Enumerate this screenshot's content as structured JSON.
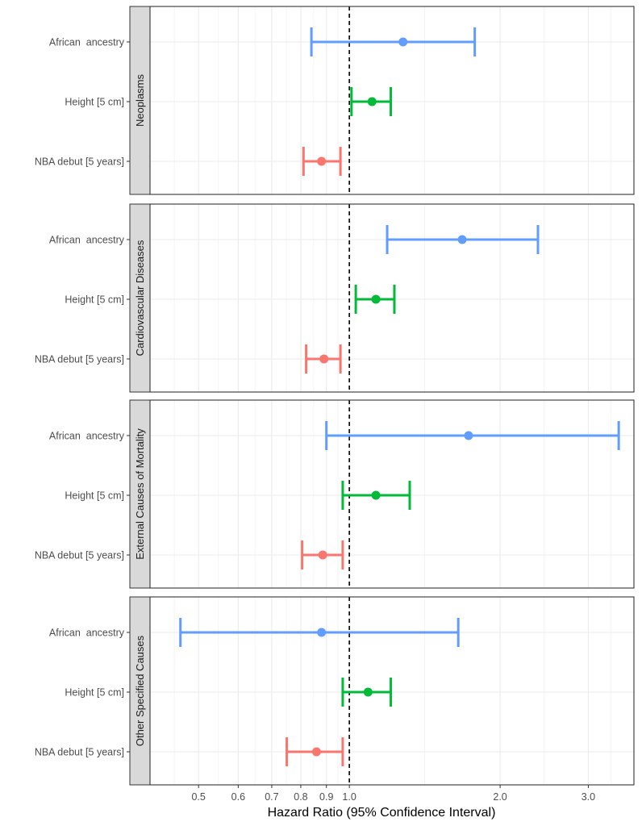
{
  "chart_data": {
    "type": "forest",
    "xlabel": "Hazard Ratio (95% Confidence Interval)",
    "xscale": "log",
    "xlim": [
      0.4,
      3.7
    ],
    "xticks": [
      0.5,
      0.6,
      0.7,
      0.8,
      0.9,
      1.0,
      2.0,
      3.0
    ],
    "xtick_labels": [
      "0.5",
      "0.6",
      "0.7",
      "0.8",
      "0.9",
      "1.0",
      "2.0",
      "3.0"
    ],
    "reference_line": 1.0,
    "grid": true,
    "categories": [
      "African  ancestry",
      "Height [5 cm]",
      "NBA debut [5 years]"
    ],
    "category_colors": [
      "#619CFF",
      "#00BA38",
      "#F8766D"
    ],
    "panels": [
      {
        "label": "Neoplasms",
        "rows": [
          {
            "category": "African  ancestry",
            "hr": 1.28,
            "lo": 0.84,
            "hi": 1.78
          },
          {
            "category": "Height [5 cm]",
            "hr": 1.11,
            "lo": 1.01,
            "hi": 1.21
          },
          {
            "category": "NBA debut [5 years]",
            "hr": 0.88,
            "lo": 0.81,
            "hi": 0.96
          }
        ]
      },
      {
        "label": "Cardiovascular Diseases",
        "rows": [
          {
            "category": "African  ancestry",
            "hr": 1.68,
            "lo": 1.19,
            "hi": 2.38
          },
          {
            "category": "Height [5 cm]",
            "hr": 1.13,
            "lo": 1.03,
            "hi": 1.23
          },
          {
            "category": "NBA debut [5 years]",
            "hr": 0.89,
            "lo": 0.82,
            "hi": 0.96
          }
        ]
      },
      {
        "label": "External Causes of Mortality",
        "rows": [
          {
            "category": "African  ancestry",
            "hr": 1.73,
            "lo": 0.9,
            "hi": 3.45
          },
          {
            "category": "Height [5 cm]",
            "hr": 1.13,
            "lo": 0.97,
            "hi": 1.32
          },
          {
            "category": "NBA debut [5 years]",
            "hr": 0.885,
            "lo": 0.805,
            "hi": 0.97
          }
        ]
      },
      {
        "label": "Other Specified Causes",
        "rows": [
          {
            "category": "African  ancestry",
            "hr": 0.88,
            "lo": 0.46,
            "hi": 1.65
          },
          {
            "category": "Height [5 cm]",
            "hr": 1.09,
            "lo": 0.97,
            "hi": 1.21
          },
          {
            "category": "NBA debut [5 years]",
            "hr": 0.86,
            "lo": 0.75,
            "hi": 0.97
          }
        ]
      }
    ]
  }
}
